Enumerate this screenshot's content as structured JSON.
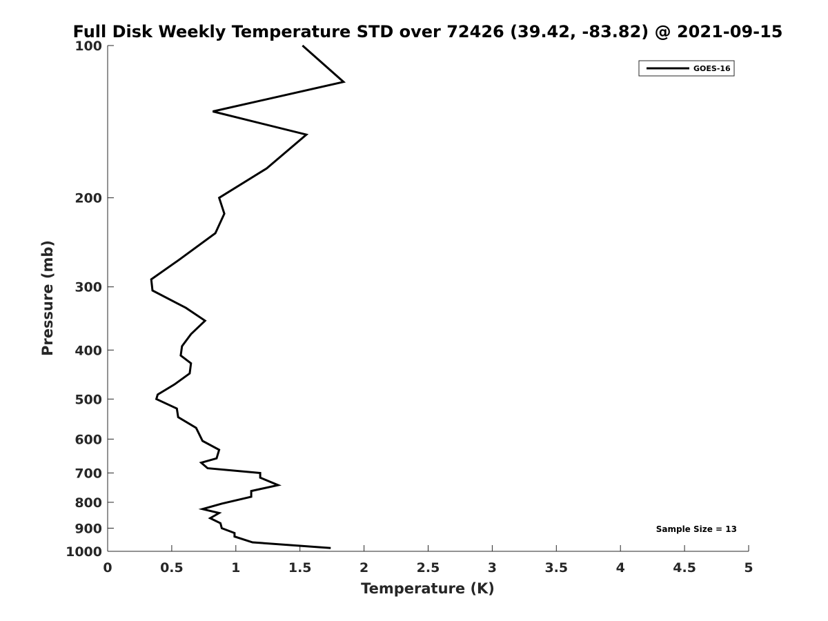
{
  "chart_data": {
    "type": "line",
    "title": "Full Disk Weekly Temperature STD over 72426 (39.42, -83.82) @ 2021-09-15",
    "xlabel": "Temperature (K)",
    "ylabel": "Pressure (mb)",
    "xlim": [
      0,
      5
    ],
    "ylim": [
      100,
      1000
    ],
    "y_scale": "log",
    "y_reversed": true,
    "x_ticks": [
      0,
      0.5,
      1,
      1.5,
      2,
      2.5,
      3,
      3.5,
      4,
      4.5,
      5
    ],
    "x_tick_labels": [
      "0",
      "0.5",
      "1",
      "1.5",
      "2",
      "2.5",
      "3",
      "3.5",
      "4",
      "4.5",
      "5"
    ],
    "y_ticks": [
      100,
      200,
      300,
      400,
      500,
      600,
      700,
      800,
      900,
      1000
    ],
    "y_tick_labels": [
      "100",
      "200",
      "300",
      "400",
      "500",
      "600",
      "700",
      "800",
      "900",
      "1000"
    ],
    "grid": false,
    "legend_position": "top-right",
    "series": [
      {
        "name": "GOES-16",
        "color": "#000000",
        "x": [
          1.52,
          1.84,
          0.82,
          1.55,
          1.24,
          0.87,
          0.91,
          0.84,
          0.56,
          0.34,
          0.35,
          0.61,
          0.76,
          0.65,
          0.58,
          0.57,
          0.65,
          0.64,
          0.52,
          0.39,
          0.38,
          0.54,
          0.55,
          0.69,
          0.74,
          0.87,
          0.85,
          0.73,
          0.78,
          1.19,
          1.19,
          1.33,
          1.12,
          1.12,
          0.89,
          0.74,
          0.87,
          0.8,
          0.88,
          0.89,
          0.99,
          0.99,
          1.13,
          1.74
        ],
        "y": [
          100,
          118,
          135,
          150,
          175,
          200,
          215,
          235,
          265,
          290,
          305,
          330,
          350,
          372,
          393,
          410,
          425,
          445,
          468,
          490,
          500,
          522,
          543,
          570,
          605,
          630,
          655,
          668,
          685,
          700,
          715,
          740,
          760,
          780,
          805,
          825,
          840,
          860,
          880,
          900,
          920,
          935,
          960,
          985
        ]
      }
    ],
    "annotations": [
      "Sample Size = 13"
    ]
  },
  "colors": {
    "axis": "#262626",
    "line": "#000000",
    "background": "#ffffff"
  }
}
